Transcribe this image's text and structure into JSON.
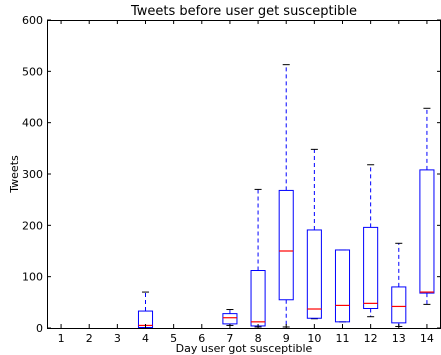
{
  "chart_data": {
    "type": "box",
    "title": "Tweets before user get susceptible",
    "xlabel": "Day user got susceptible",
    "ylabel": "Tweets",
    "ylim": [
      0,
      600
    ],
    "yticks": [
      0,
      100,
      200,
      300,
      400,
      500,
      600
    ],
    "categories": [
      "1",
      "2",
      "3",
      "4",
      "5",
      "6",
      "7",
      "8",
      "9",
      "10",
      "11",
      "12",
      "13",
      "14"
    ],
    "boxes": [
      null,
      null,
      null,
      {
        "whisker_low": 0,
        "q1": 1,
        "median": 5,
        "q3": 33,
        "whisker_high": 70
      },
      null,
      null,
      {
        "whisker_low": 5,
        "q1": 8,
        "median": 20,
        "q3": 28,
        "whisker_high": 36
      },
      {
        "whisker_low": 2,
        "q1": 4,
        "median": 12,
        "q3": 112,
        "whisker_high": 270
      },
      {
        "whisker_low": 2,
        "q1": 55,
        "median": 150,
        "q3": 268,
        "whisker_high": 513
      },
      {
        "whisker_low": 18,
        "q1": 19,
        "median": 37,
        "q3": 191,
        "whisker_high": 348
      },
      {
        "whisker_low": 12,
        "q1": 12,
        "median": 44,
        "q3": 152,
        "whisker_high": 152
      },
      {
        "whisker_low": 22,
        "q1": 38,
        "median": 48,
        "q3": 196,
        "whisker_high": 318
      },
      {
        "whisker_low": 3,
        "q1": 10,
        "median": 42,
        "q3": 80,
        "whisker_high": 165
      },
      {
        "whisker_low": 46,
        "q1": 68,
        "median": 70,
        "q3": 308,
        "whisker_high": 428
      }
    ],
    "box_color": "#0000ff",
    "median_color": "#ff0000",
    "whisker_style": "dashed",
    "grid": false
  }
}
